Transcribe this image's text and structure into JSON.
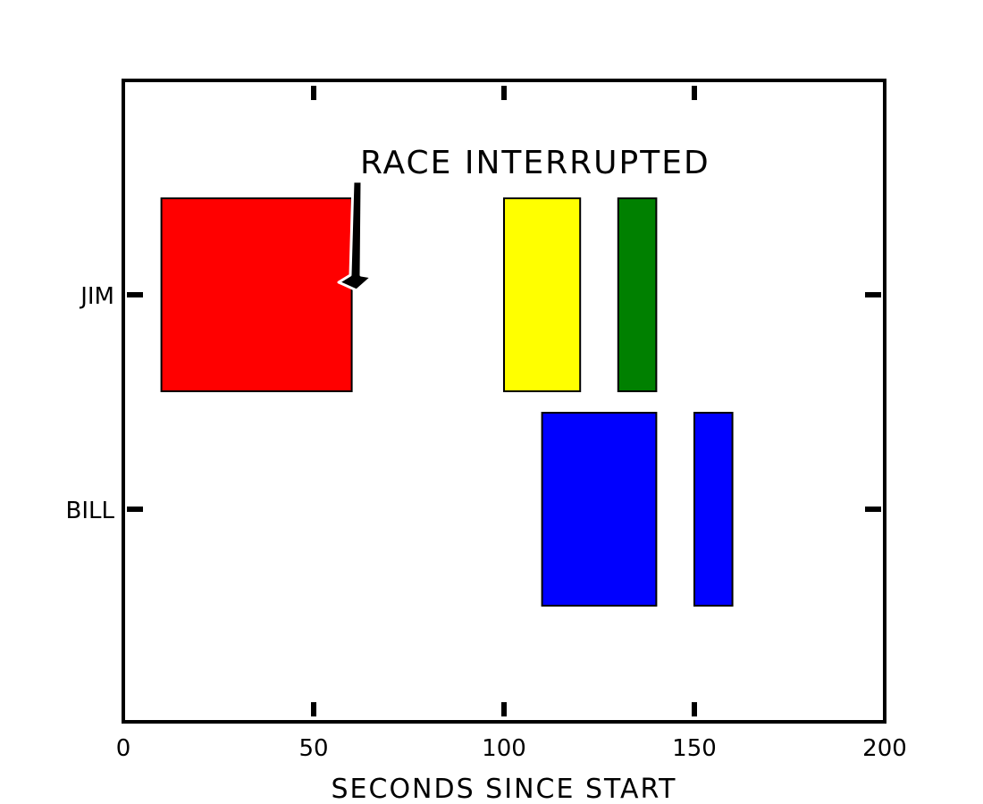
{
  "chart_data": {
    "type": "bar",
    "orientation": "horizontal-broken",
    "xlabel": "SECONDS SINCE START",
    "xlim": [
      0,
      200
    ],
    "x_ticks": [
      0,
      50,
      100,
      150,
      200
    ],
    "y_categories": [
      "JIM",
      "BILL"
    ],
    "series": [
      {
        "category": "JIM",
        "segments": [
          {
            "start": 10,
            "width": 50,
            "color": "#ff0000"
          },
          {
            "start": 100,
            "width": 20,
            "color": "#ffff00"
          },
          {
            "start": 130,
            "width": 10,
            "color": "#008000"
          }
        ]
      },
      {
        "category": "BILL",
        "segments": [
          {
            "start": 110,
            "width": 30,
            "color": "#0000ff"
          },
          {
            "start": 150,
            "width": 10,
            "color": "#0000ff"
          }
        ]
      }
    ],
    "annotations": [
      {
        "text": "RACE INTERRUPTED",
        "x": 61,
        "y": "JIM"
      }
    ],
    "grid": false,
    "legend": "none"
  }
}
